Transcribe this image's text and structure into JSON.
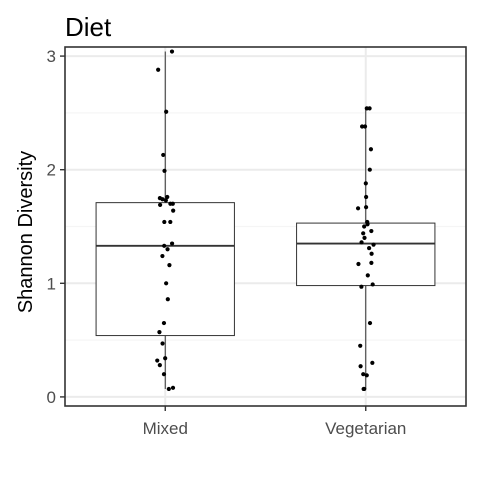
{
  "chart_data": {
    "type": "box",
    "title": "Diet",
    "xlabel": "",
    "ylabel": "Shannon Diversity",
    "categories": [
      "Mixed",
      "Vegetarian"
    ],
    "ylim": [
      -0.08,
      3.08
    ],
    "yticks": [
      0,
      1,
      2,
      3
    ],
    "ytick_labels": [
      "0",
      "1",
      "2",
      "3"
    ],
    "grid": true,
    "legend": "none",
    "boxes": [
      {
        "category": "Mixed",
        "lower_whisker": 0.07,
        "q1": 0.54,
        "median": 1.33,
        "q3": 1.71,
        "upper_whisker": 3.04
      },
      {
        "category": "Vegetarian",
        "lower_whisker": 0.07,
        "q1": 0.98,
        "median": 1.35,
        "q3": 1.53,
        "upper_whisker": 2.54
      }
    ],
    "points": [
      {
        "category": "Mixed",
        "values": [
          3.04,
          2.88,
          2.51,
          2.13,
          1.99,
          1.76,
          1.75,
          1.74,
          1.73,
          1.7,
          1.7,
          1.69,
          1.64,
          1.54,
          1.54,
          1.35,
          1.33,
          1.3,
          1.24,
          1.16,
          1.0,
          0.86,
          0.65,
          0.57,
          0.47,
          0.34,
          0.32,
          0.28,
          0.2,
          0.08,
          0.07
        ]
      },
      {
        "category": "Vegetarian",
        "values": [
          2.54,
          2.54,
          2.38,
          2.38,
          2.18,
          2.0,
          1.88,
          1.76,
          1.67,
          1.66,
          1.54,
          1.52,
          1.5,
          1.46,
          1.44,
          1.4,
          1.36,
          1.34,
          1.31,
          1.26,
          1.18,
          1.17,
          1.07,
          0.99,
          0.97,
          0.65,
          0.45,
          0.3,
          0.27,
          0.2,
          0.19,
          0.07,
          0.07
        ]
      }
    ],
    "colors": {
      "panel_border": "#333333",
      "grid_major": "#ebebeb",
      "grid_minor": "#f5f5f5",
      "box_line": "#333333",
      "point": "#000000",
      "tick_text": "#4d4d4d"
    }
  }
}
